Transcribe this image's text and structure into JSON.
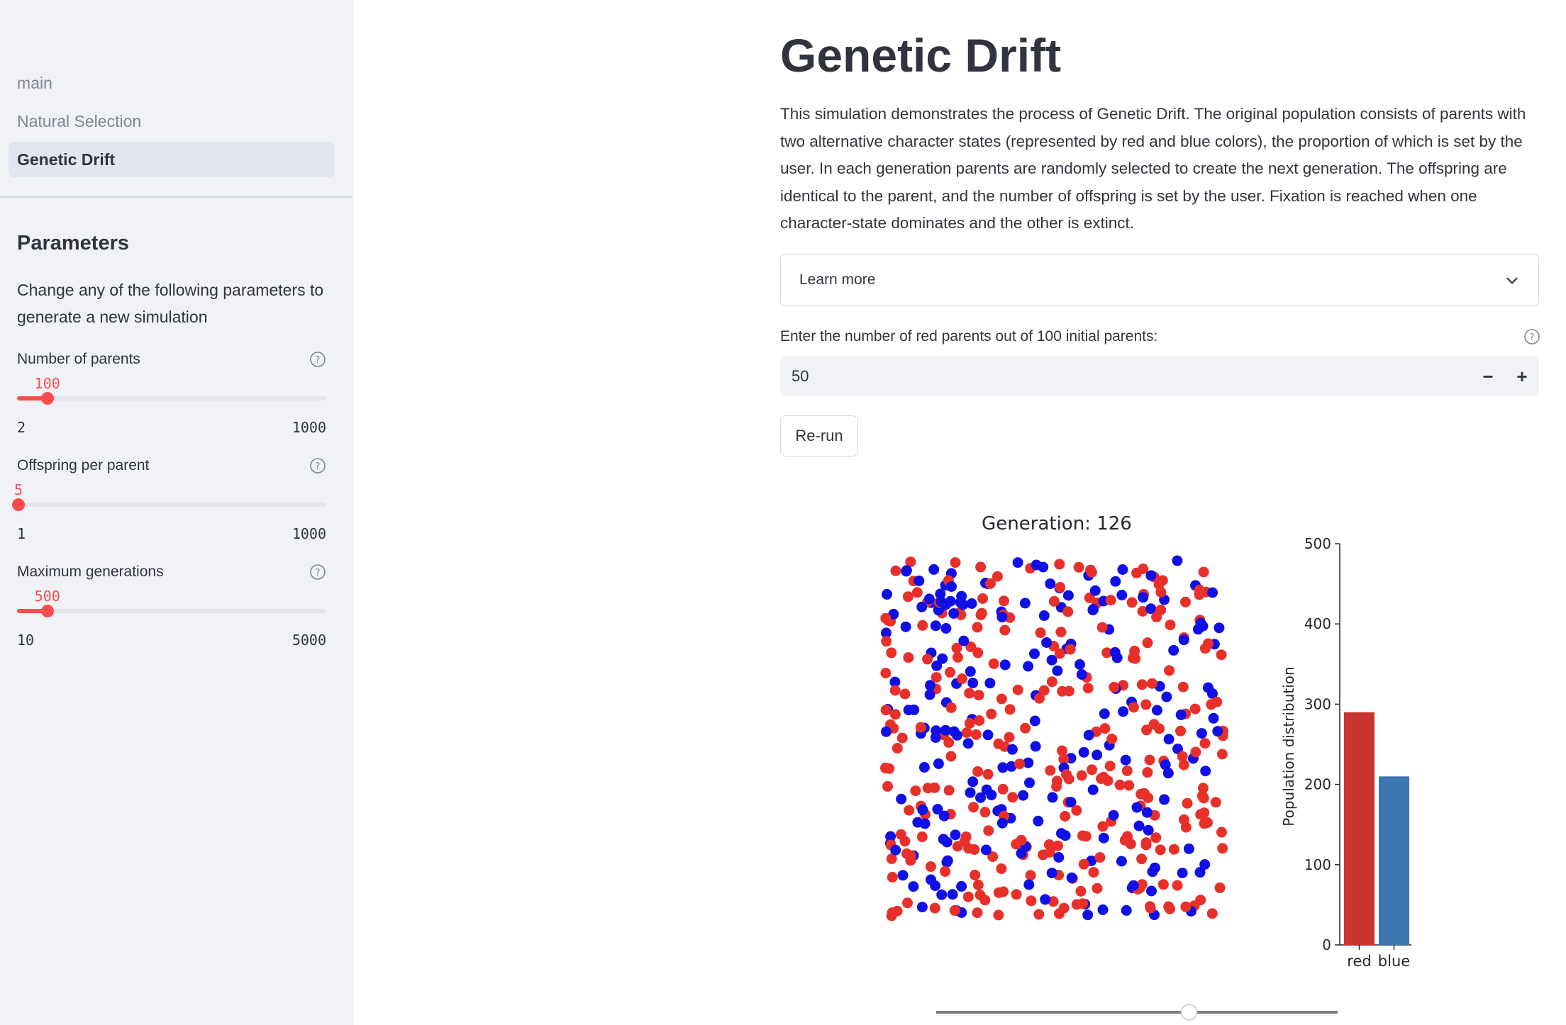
{
  "sidebar": {
    "nav": [
      {
        "label": "main",
        "active": false
      },
      {
        "label": "Natural Selection",
        "active": false
      },
      {
        "label": "Genetic Drift",
        "active": true
      }
    ],
    "params_title": "Parameters",
    "params_desc": "Change any of the following parameters to generate a new simulation",
    "sliders": [
      {
        "label": "Number of parents",
        "value": "100",
        "min": "2",
        "max": "1000",
        "fraction": 0.098
      },
      {
        "label": "Offspring per parent",
        "value": "5",
        "min": "1",
        "max": "1000",
        "fraction": 0.004
      },
      {
        "label": "Maximum generations",
        "value": "500",
        "min": "10",
        "max": "5000",
        "fraction": 0.098
      }
    ]
  },
  "main": {
    "title": "Genetic Drift",
    "intro": "This simulation demonstrates the process of Genetic Drift. The original population consists of parents with two alternative character states (represented by red and blue colors), the proportion of which is set by the user. In each generation parents are randomly selected to create the next generation. The offspring are identical to the parent, and the number of offspring is set by the user. Fixation is reached when one character-state dominates and the other is extinct.",
    "expander_label": "Learn more",
    "number_input_label": "Enter the number of red parents out of 100 initial parents:",
    "number_input_value": "50",
    "minus_label": "−",
    "plus_label": "+",
    "rerun_label": "Re-run"
  },
  "chart_data": [
    {
      "type": "scatter",
      "title": "Generation: 126",
      "series": [
        {
          "name": "red",
          "color": "#e8302a"
        },
        {
          "name": "blue",
          "color": "#1010e6"
        }
      ],
      "red_count": 290,
      "blue_count": 210,
      "grid": false
    },
    {
      "type": "bar",
      "categories": [
        "red",
        "blue"
      ],
      "values": [
        290,
        210
      ],
      "colors": [
        "#c9362f",
        "#3b76b0"
      ],
      "ylabel": "Population distribution",
      "ylim": [
        0,
        500
      ],
      "yticks": [
        "0",
        "100",
        "200",
        "300",
        "400",
        "500"
      ],
      "grid": false
    }
  ],
  "animation_slider": {
    "fraction": 0.63
  },
  "colors": {
    "accent": "#ff4b4b",
    "sidebar_bg": "#f0f2f6"
  }
}
